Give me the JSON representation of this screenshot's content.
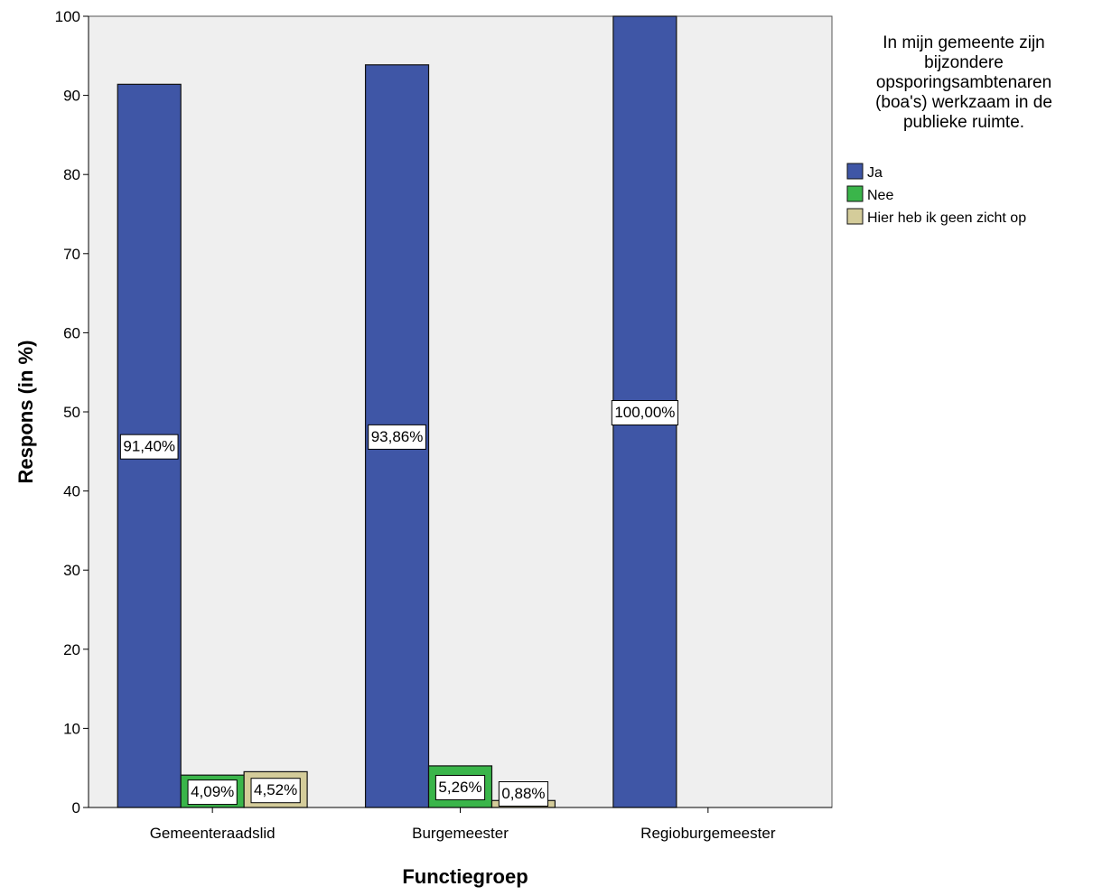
{
  "chart_data": {
    "type": "bar",
    "categories": [
      "Gemeenteraadslid",
      "Burgemeester",
      "Regioburgemeester"
    ],
    "series": [
      {
        "name": "Ja",
        "color": "#3f56a6",
        "values": [
          91.4,
          93.86,
          100.0
        ],
        "labels": [
          "91,40%",
          "93,86%",
          "100,00%"
        ]
      },
      {
        "name": "Nee",
        "color": "#3ab54a",
        "values": [
          4.09,
          5.26,
          null
        ],
        "labels": [
          "4,09%",
          "5,26%",
          ""
        ]
      },
      {
        "name": "Hier heb ik geen zicht op",
        "color": "#d4cc9a",
        "values": [
          4.52,
          0.88,
          null
        ],
        "labels": [
          "4,52%",
          "0,88%",
          ""
        ]
      }
    ],
    "xlabel": "Functiegroep",
    "ylabel": "Respons (in %)",
    "ylim": [
      0,
      100
    ],
    "yticks": [
      "0",
      "10",
      "20",
      "30",
      "40",
      "50",
      "60",
      "70",
      "80",
      "90",
      "100"
    ],
    "legend": {
      "title_lines": [
        "In mijn gemeente zijn",
        "bijzondere",
        "opsporingsambtenaren",
        "(boa's) werkzaam in de",
        "publieke ruimte."
      ],
      "placement": "right"
    },
    "plot_background": "#efefef",
    "grid": false
  }
}
